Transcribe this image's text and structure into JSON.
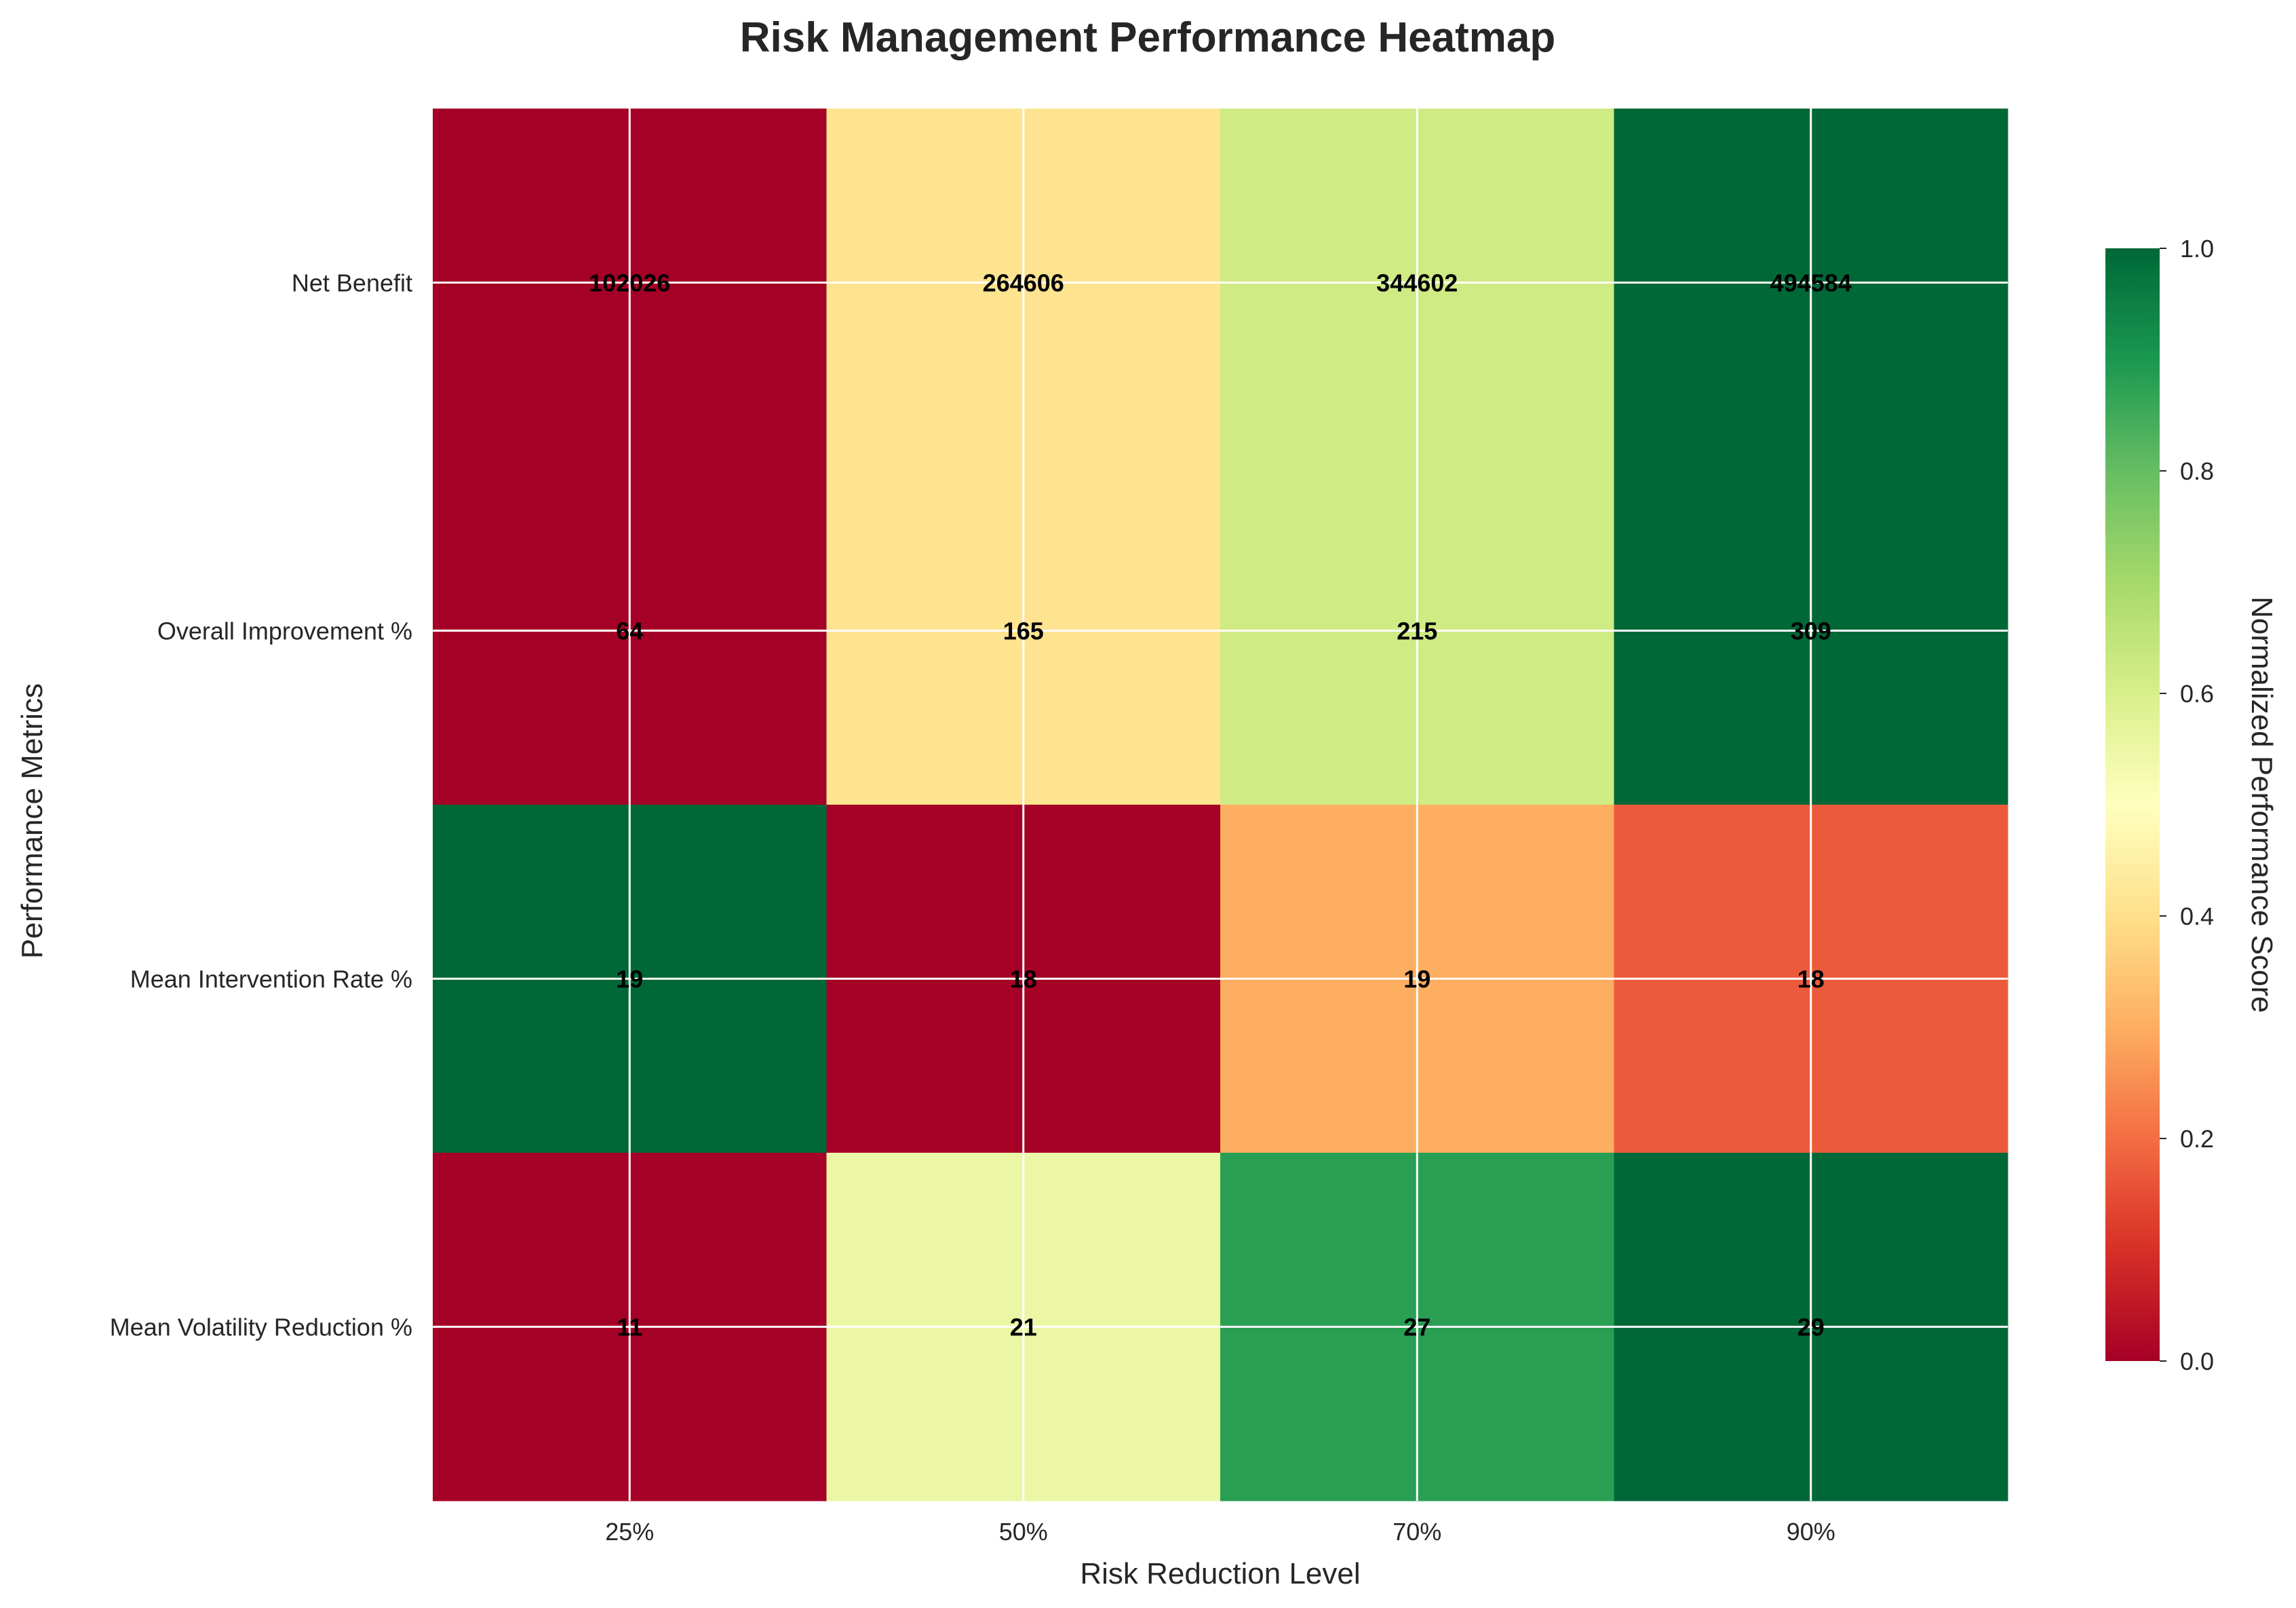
{
  "chart_data": {
    "type": "heatmap",
    "title": "Risk Management Performance Heatmap",
    "xlabel": "Risk Reduction Level",
    "ylabel": "Performance Metrics",
    "x_categories": [
      "25%",
      "50%",
      "70%",
      "90%"
    ],
    "y_categories": [
      "Net Benefit",
      "Overall Improvement %",
      "Mean Intervention Rate %",
      "Mean Volatility Reduction %"
    ],
    "cell_labels": [
      [
        "102026",
        "264606",
        "344602",
        "494584"
      ],
      [
        "64",
        "165",
        "215",
        "309"
      ],
      [
        "19",
        "18",
        "19",
        "18"
      ],
      [
        "11",
        "21",
        "27",
        "29"
      ]
    ],
    "normalized_values": [
      [
        0.0,
        0.41,
        0.62,
        1.0
      ],
      [
        0.0,
        0.41,
        0.62,
        1.0
      ],
      [
        1.0,
        0.0,
        0.3,
        0.17
      ],
      [
        0.0,
        0.55,
        0.88,
        1.0
      ]
    ],
    "colormap": "RdYlGn",
    "colorbar": {
      "label": "Normalized Performance Score",
      "range": [
        0.0,
        1.0
      ],
      "ticks": [
        "0.0",
        "0.2",
        "0.4",
        "0.6",
        "0.8",
        "1.0"
      ]
    },
    "grid": true,
    "grid_color": "#ffffff"
  }
}
